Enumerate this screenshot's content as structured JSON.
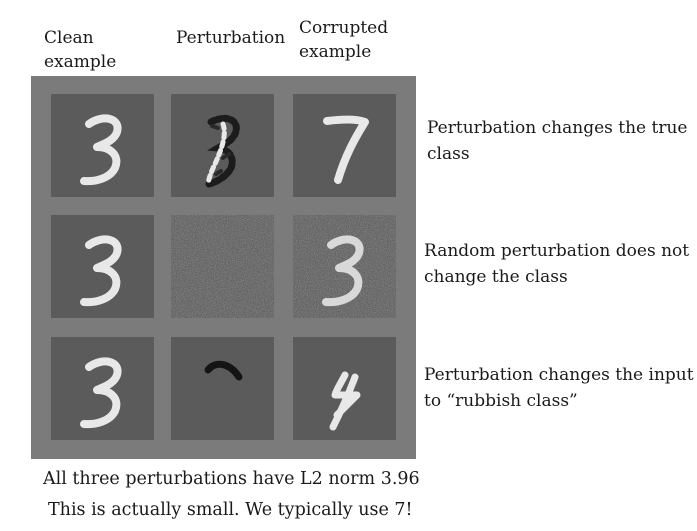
{
  "headers": {
    "clean": [
      "Clean",
      "example"
    ],
    "perturbation": "Perturbation",
    "corrupted": [
      "Corrupted",
      "example"
    ]
  },
  "rows": [
    {
      "note": [
        "Perturbation changes the true",
        "class"
      ]
    },
    {
      "note": [
        "Random perturbation does not",
        "change the class"
      ]
    },
    {
      "note": [
        "Perturbation changes the input",
        "to “rubbish class”"
      ]
    }
  ],
  "captions": [
    "All three perturbations have L2 norm 3.96",
    "This is actually small. We typically use 7!"
  ]
}
